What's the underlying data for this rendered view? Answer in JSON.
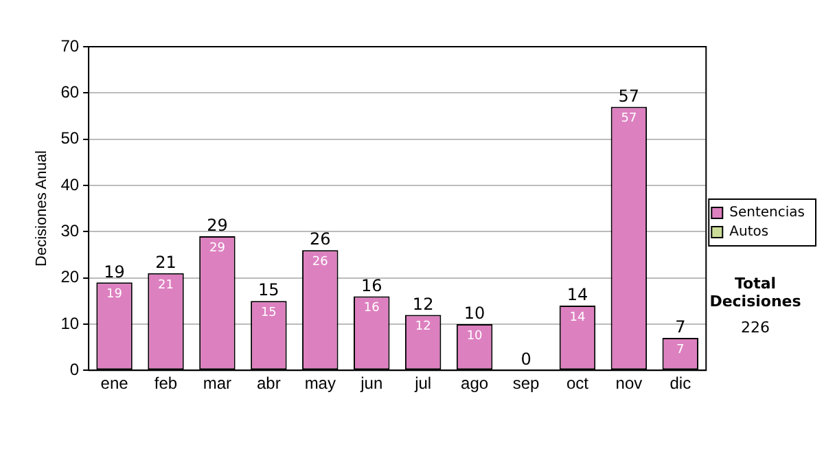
{
  "chart_data": {
    "type": "bar",
    "ylabel": "Decisiones Anual",
    "categories": [
      "ene",
      "feb",
      "mar",
      "abr",
      "may",
      "jun",
      "jul",
      "ago",
      "sep",
      "oct",
      "nov",
      "dic"
    ],
    "series": [
      {
        "name": "Sentencias",
        "color": "#dd80c0",
        "values": [
          19,
          21,
          29,
          15,
          26,
          16,
          12,
          10,
          0,
          14,
          57,
          7
        ],
        "value_labels": [
          "19",
          "21",
          "29",
          "15",
          "26",
          "16",
          "12",
          "10",
          null,
          "14",
          "57",
          "7"
        ]
      },
      {
        "name": "Autos",
        "color": "#ccdd99",
        "values": [
          0,
          0,
          0,
          0,
          0,
          0,
          0,
          0,
          0,
          0,
          0,
          0
        ]
      }
    ],
    "stacked": true,
    "totals": [
      "19",
      "21",
      "29",
      "15",
      "26",
      "16",
      "12",
      "10",
      "0",
      "14",
      "57",
      "7"
    ],
    "ylim": [
      0,
      70
    ],
    "yticks": [
      0,
      10,
      20,
      30,
      40,
      50,
      60,
      70
    ],
    "grid": "y",
    "legend": "right",
    "annotations": [
      "Total Decisiones",
      "226"
    ]
  }
}
